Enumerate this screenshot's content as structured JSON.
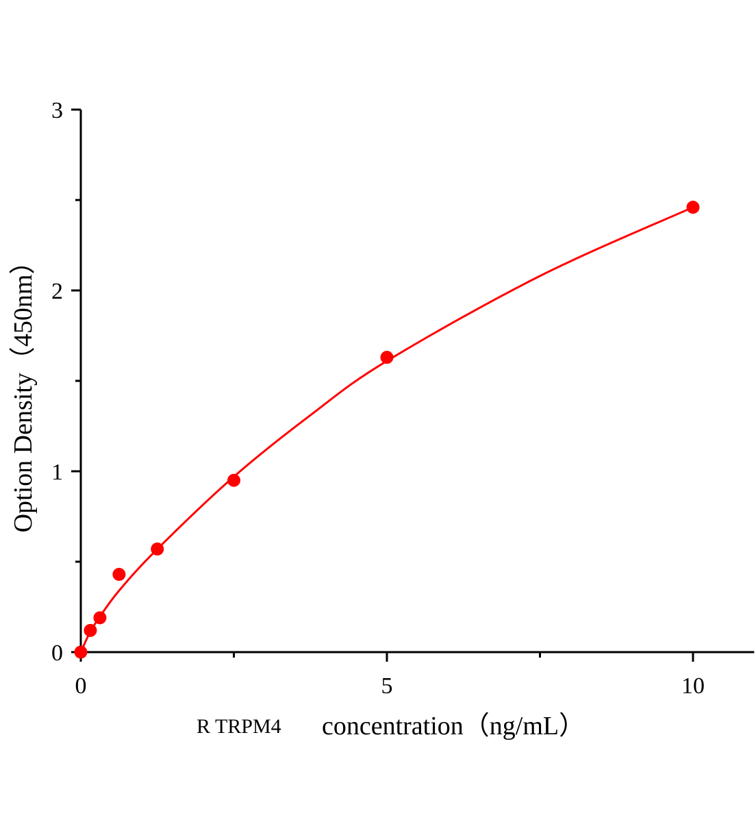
{
  "chart_data": {
    "type": "scatter",
    "title": "",
    "xlabel_prefix": "R TRPM4",
    "xlabel": "concentration（ng/mL）",
    "ylabel": "Option Density（450nm）",
    "xlim": [
      0,
      11
    ],
    "ylim": [
      0,
      3
    ],
    "x_ticks": [
      "0",
      "5",
      "10"
    ],
    "x_tick_values": [
      0,
      5,
      10
    ],
    "x_minor_ticks": [
      2.5,
      7.5
    ],
    "y_ticks": [
      "0",
      "1",
      "2",
      "3"
    ],
    "y_tick_values": [
      0,
      1,
      2,
      3
    ],
    "y_minor_ticks": [
      0.5,
      1.5,
      2.5
    ],
    "grid": false,
    "color": "#ff0000",
    "points": [
      {
        "x": 0,
        "y": 0.0
      },
      {
        "x": 0.156,
        "y": 0.12
      },
      {
        "x": 0.3125,
        "y": 0.19
      },
      {
        "x": 0.625,
        "y": 0.43
      },
      {
        "x": 1.25,
        "y": 0.57
      },
      {
        "x": 2.5,
        "y": 0.95
      },
      {
        "x": 5,
        "y": 1.63
      },
      {
        "x": 10,
        "y": 2.46
      }
    ],
    "fitted_curve": [
      {
        "x": 0,
        "y": 0
      },
      {
        "x": 0.15,
        "y": 0.11
      },
      {
        "x": 0.3,
        "y": 0.19
      },
      {
        "x": 0.625,
        "y": 0.34
      },
      {
        "x": 1.25,
        "y": 0.57
      },
      {
        "x": 2.5,
        "y": 0.97
      },
      {
        "x": 3.75,
        "y": 1.31
      },
      {
        "x": 5,
        "y": 1.61
      },
      {
        "x": 7.5,
        "y": 2.08
      },
      {
        "x": 10,
        "y": 2.46
      }
    ]
  }
}
